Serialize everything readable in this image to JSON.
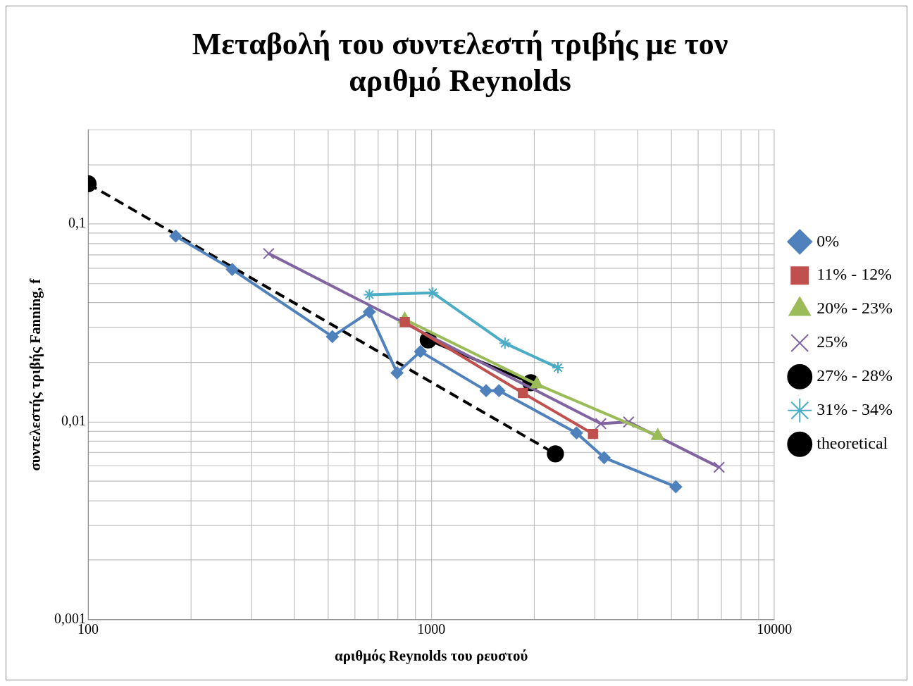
{
  "chart_data": {
    "type": "line",
    "title": "Μεταβολή του συντελεστή τριβής με τον αριθμό Reynolds",
    "xlabel": "αριθμός Reynolds του ρευστού",
    "ylabel": "συντελεστής τριβής Fanning, f",
    "log": "xy",
    "grid": true,
    "legend": "right",
    "xlim": [
      100,
      10000
    ],
    "xticks": [
      100,
      {
        "value": 200,
        "label": null
      },
      {
        "value": 300,
        "label": null
      },
      {
        "value": 400,
        "label": null
      },
      {
        "value": 500,
        "label": null
      },
      {
        "value": 600,
        "label": null
      },
      {
        "value": 700,
        "label": null
      },
      {
        "value": 800,
        "label": null
      },
      {
        "value": 900,
        "label": null
      },
      1000,
      {
        "value": 2000,
        "label": null
      },
      {
        "value": 3000,
        "label": null
      },
      {
        "value": 4000,
        "label": null
      },
      {
        "value": 5000,
        "label": null
      },
      {
        "value": 6000,
        "label": null
      },
      {
        "value": 7000,
        "label": null
      },
      {
        "value": 8000,
        "label": null
      },
      {
        "value": 9000,
        "label": null
      },
      10000
    ],
    "ylim": [
      0.001,
      0.3
    ],
    "yticks": [
      {
        "value": 0.001,
        "label": "0,001"
      },
      {
        "value": 0.002,
        "label": null
      },
      {
        "value": 0.003,
        "label": null
      },
      {
        "value": 0.004,
        "label": null
      },
      {
        "value": 0.005,
        "label": null
      },
      {
        "value": 0.006,
        "label": null
      },
      {
        "value": 0.007,
        "label": null
      },
      {
        "value": 0.008,
        "label": null
      },
      {
        "value": 0.009,
        "label": null
      },
      {
        "value": 0.01,
        "label": "0,01"
      },
      {
        "value": 0.02,
        "label": null
      },
      {
        "value": 0.03,
        "label": null
      },
      {
        "value": 0.04,
        "label": null
      },
      {
        "value": 0.05,
        "label": null
      },
      {
        "value": 0.06,
        "label": null
      },
      {
        "value": 0.07,
        "label": null
      },
      {
        "value": 0.08,
        "label": null
      },
      {
        "value": 0.09,
        "label": null
      },
      {
        "value": 0.1,
        "label": "0,1"
      },
      {
        "value": 0.2,
        "label": null
      },
      {
        "value": 0.3,
        "label": null
      }
    ],
    "series": [
      {
        "name": "0%",
        "color": "#4f81bd",
        "type": "line",
        "marker": "diamond",
        "line_style": "solid",
        "x": [
          180,
          263,
          515,
          660,
          795,
          930,
          1445,
          1575,
          2650,
          3190,
          5160
        ],
        "values": [
          0.087,
          0.059,
          0.027,
          0.036,
          0.0177,
          0.0227,
          0.0144,
          0.0144,
          0.0088,
          0.0066,
          0.0047
        ]
      },
      {
        "name": "11% - 12%",
        "color": "#c0504d",
        "type": "line",
        "marker": "square",
        "line_style": "solid",
        "x": [
          837,
          1850,
          2960
        ],
        "values": [
          0.032,
          0.014,
          0.0087
        ]
      },
      {
        "name": "20% - 23%",
        "color": "#9bbb59",
        "type": "line",
        "marker": "triangle",
        "line_style": "solid",
        "x": [
          837,
          2030,
          4570
        ],
        "values": [
          0.033,
          0.0155,
          0.0085
        ]
      },
      {
        "name": "25%",
        "color": "#8064a2",
        "type": "line",
        "marker": "cross",
        "line_style": "solid",
        "x": [
          336,
          3120,
          3760,
          6900
        ],
        "values": [
          0.071,
          0.0098,
          0.01,
          0.0059
        ]
      },
      {
        "name": "27% - 28%",
        "color": "#000000",
        "type": "line",
        "marker": "circle",
        "line_style": "solid",
        "x": [
          980,
          1950
        ],
        "values": [
          0.026,
          0.0158
        ]
      },
      {
        "name": "31% - 34%",
        "color": "#4bacc6",
        "type": "line",
        "marker": "cross",
        "line_style": "solid",
        "x": [
          660,
          1010,
          1640,
          2340
        ],
        "values": [
          0.044,
          0.045,
          0.025,
          0.0188
        ]
      },
      {
        "name": "theoretical",
        "color": "#000000",
        "type": "line",
        "marker": "circle",
        "line_style": "dashed",
        "x": [
          100,
          2300
        ],
        "values": [
          0.16,
          0.0069
        ]
      }
    ]
  }
}
